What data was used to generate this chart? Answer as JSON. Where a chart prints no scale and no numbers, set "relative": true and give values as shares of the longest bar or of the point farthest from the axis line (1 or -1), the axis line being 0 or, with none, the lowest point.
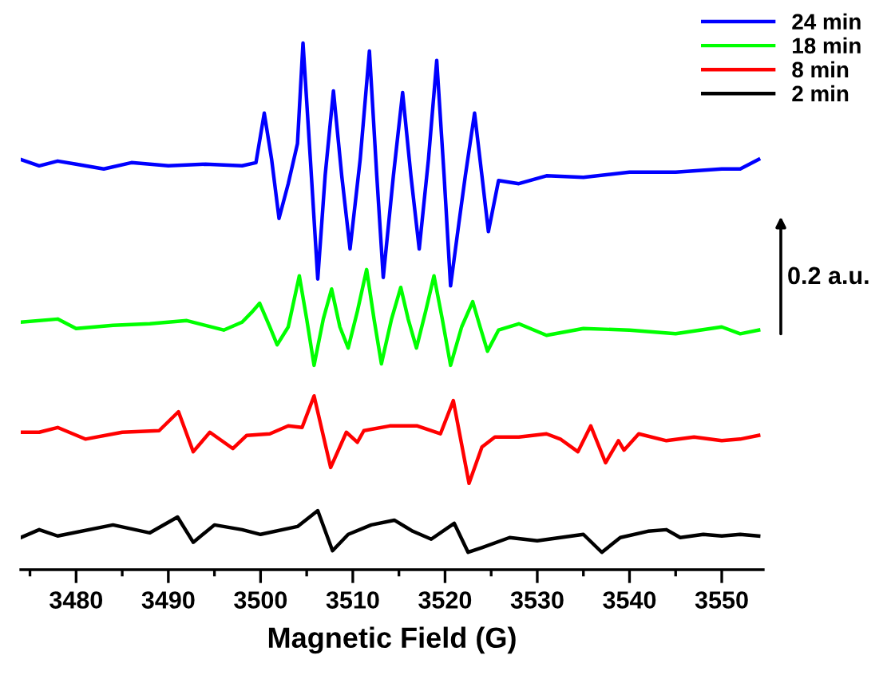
{
  "chart_data": {
    "type": "line",
    "relative": true,
    "xlabel": "Magnetic Field (G)",
    "xlim": [
      3474,
      3554.5
    ],
    "xticks": [
      {
        "value": 3475,
        "label": null
      },
      3480,
      {
        "value": 3485,
        "label": null
      },
      3490,
      {
        "value": 3495,
        "label": null
      },
      3500,
      {
        "value": 3505,
        "label": null
      },
      3510,
      {
        "value": 3515,
        "label": null
      },
      3520,
      {
        "value": 3525,
        "label": null
      },
      3530,
      {
        "value": 3535,
        "label": null
      },
      3540,
      {
        "value": 3545,
        "label": null
      },
      3550
    ],
    "tick_labels": "x",
    "legend": "top right",
    "grid": false,
    "line_style": "solid",
    "marker": "none",
    "annotations": [
      "0.2 a.u."
    ],
    "series": [
      {
        "name": "24 min",
        "color": "#0000ff",
        "x": [
          3474,
          3476,
          3478,
          3480,
          3483,
          3486,
          3490,
          3494,
          3498,
          3499.5,
          3500.4,
          3501.2,
          3502,
          3503,
          3504,
          3504.6,
          3505.4,
          3506.2,
          3507,
          3507.9,
          3508.8,
          3509.7,
          3510.8,
          3511.8,
          3512.6,
          3513.3,
          3514.4,
          3515.4,
          3516.3,
          3517.2,
          3518.2,
          3519.1,
          3519.9,
          3520.6,
          3521.5,
          3522.2,
          3523.2,
          3524,
          3524.7,
          3525.8,
          3528,
          3531,
          3535,
          3540,
          3545,
          3550,
          3552,
          3554
        ],
        "values": [
          0.779,
          0.767,
          0.776,
          0.77,
          0.761,
          0.773,
          0.767,
          0.77,
          0.767,
          0.773,
          0.867,
          0.779,
          0.667,
          0.733,
          0.809,
          1,
          0.779,
          0.552,
          0.748,
          0.909,
          0.748,
          0.609,
          0.779,
          0.985,
          0.748,
          0.555,
          0.748,
          0.906,
          0.748,
          0.609,
          0.779,
          0.967,
          0.748,
          0.539,
          0.658,
          0.748,
          0.867,
          0.748,
          0.642,
          0.739,
          0.733,
          0.748,
          0.745,
          0.755,
          0.755,
          0.761,
          0.761,
          0.779
        ]
      },
      {
        "name": "18 min",
        "color": "#00ff00",
        "x": [
          3474,
          3478,
          3480,
          3484,
          3488,
          3492,
          3496,
          3498,
          3499,
          3499.9,
          3501,
          3501.8,
          3503,
          3504.2,
          3505,
          3505.8,
          3506.8,
          3507.7,
          3508.6,
          3509.5,
          3510.5,
          3511.5,
          3512.3,
          3513.1,
          3514.2,
          3515.2,
          3516,
          3516.9,
          3517.9,
          3518.8,
          3519.7,
          3520.6,
          3521.8,
          3523,
          3523.8,
          3524.6,
          3525.8,
          3528,
          3531,
          3535,
          3540,
          3545,
          3550,
          3552,
          3554
        ],
        "values": [
          0.47,
          0.476,
          0.458,
          0.464,
          0.467,
          0.473,
          0.455,
          0.47,
          0.488,
          0.506,
          0.461,
          0.427,
          0.461,
          0.558,
          0.476,
          0.388,
          0.476,
          0.533,
          0.461,
          0.421,
          0.491,
          0.57,
          0.476,
          0.391,
          0.476,
          0.536,
          0.476,
          0.421,
          0.491,
          0.558,
          0.476,
          0.388,
          0.461,
          0.509,
          0.461,
          0.415,
          0.455,
          0.467,
          0.445,
          0.458,
          0.455,
          0.448,
          0.461,
          0.448,
          0.455
        ]
      },
      {
        "name": "8 min",
        "color": "#ff0000",
        "x": [
          3474,
          3476,
          3478,
          3481,
          3485,
          3489,
          3491.1,
          3492.7,
          3494.5,
          3497,
          3498.5,
          3501,
          3503,
          3504.5,
          3505.8,
          3507.6,
          3509.3,
          3510.5,
          3511.2,
          3514,
          3517,
          3519.5,
          3520.9,
          3522.6,
          3524,
          3525.4,
          3528,
          3531,
          3532.5,
          3534.4,
          3535.8,
          3537.4,
          3538.8,
          3539.4,
          3541,
          3544,
          3547,
          3550,
          3552,
          3554
        ],
        "values": [
          0.261,
          0.261,
          0.27,
          0.248,
          0.261,
          0.264,
          0.3,
          0.224,
          0.261,
          0.23,
          0.255,
          0.258,
          0.273,
          0.27,
          0.33,
          0.194,
          0.261,
          0.242,
          0.264,
          0.273,
          0.273,
          0.258,
          0.321,
          0.164,
          0.233,
          0.252,
          0.252,
          0.258,
          0.248,
          0.224,
          0.273,
          0.203,
          0.245,
          0.227,
          0.258,
          0.245,
          0.252,
          0.245,
          0.248,
          0.255
        ]
      },
      {
        "name": "2 min",
        "color": "#000000",
        "x": [
          3474,
          3476,
          3478,
          3484,
          3488,
          3491,
          3492.7,
          3495,
          3498,
          3500,
          3504,
          3506.2,
          3507.8,
          3509.5,
          3512,
          3514.5,
          3516.5,
          3518.5,
          3521,
          3522.5,
          3524,
          3527,
          3530,
          3535,
          3537,
          3539,
          3542,
          3544,
          3545.5,
          3548,
          3550,
          3552,
          3554
        ],
        "values": [
          0.061,
          0.076,
          0.064,
          0.085,
          0.07,
          0.1,
          0.052,
          0.085,
          0.076,
          0.067,
          0.082,
          0.112,
          0.036,
          0.067,
          0.085,
          0.094,
          0.073,
          0.058,
          0.088,
          0.033,
          0.042,
          0.061,
          0.055,
          0.067,
          0.033,
          0.061,
          0.073,
          0.076,
          0.061,
          0.067,
          0.064,
          0.067,
          0.064
        ]
      }
    ]
  }
}
